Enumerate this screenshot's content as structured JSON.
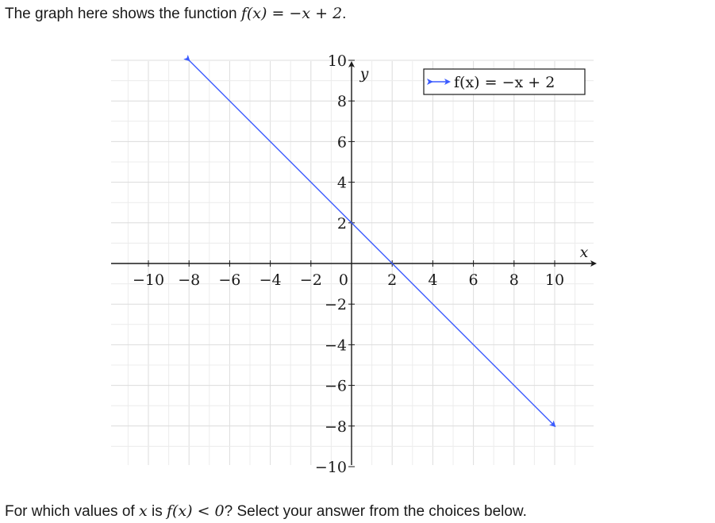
{
  "intro": {
    "prefix": "The graph here shows the function ",
    "math": "f(x) = −x + 2",
    "suffix": "."
  },
  "question": {
    "prefix": "For which values of ",
    "var": "x",
    "middle": " is ",
    "math": "f(x) < 0",
    "suffix": "? Select your answer from the choices below."
  },
  "chart_data": {
    "type": "line",
    "xlabel": "x",
    "ylabel": "y",
    "xlim": [
      -12,
      12
    ],
    "ylim": [
      -11,
      11
    ],
    "grid": true,
    "xticks": [
      -10,
      -8,
      -6,
      -4,
      -2,
      0,
      2,
      4,
      6,
      8,
      10
    ],
    "yticks": [
      -10,
      -8,
      -6,
      -4,
      -2,
      2,
      4,
      6,
      8,
      10
    ],
    "series": [
      {
        "name": "f(x) = −x + 2",
        "color": "#3b5bff",
        "x": [
          -8,
          10
        ],
        "y": [
          10,
          -8
        ],
        "arrows": "both"
      }
    ],
    "legend_position": "top-right"
  }
}
